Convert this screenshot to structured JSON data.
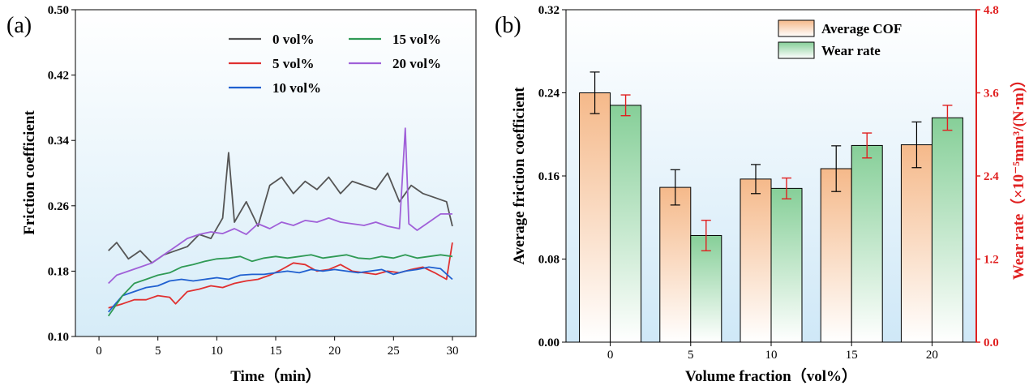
{
  "chart_data": [
    {
      "panel_label": "(a)",
      "type": "line",
      "title": "",
      "xlabel": "Time（min）",
      "ylabel": "Friction coefficient",
      "xlim": [
        -2,
        32
      ],
      "ylim": [
        0.1,
        0.5
      ],
      "xticks": [
        0,
        5,
        10,
        15,
        20,
        25,
        30
      ],
      "yticks": [
        0.1,
        0.18,
        0.26,
        0.34,
        0.42,
        0.5
      ],
      "yticklabels": [
        "0.10",
        "0.18",
        "0.26",
        "0.34",
        "0.42",
        "0.50"
      ],
      "legend_position": "top-right",
      "series": [
        {
          "name": "0 vol%",
          "color": "#555555",
          "x": [
            0.8,
            1.5,
            2.5,
            3.5,
            4.5,
            5.5,
            6.5,
            7.5,
            8.5,
            9.5,
            10.5,
            11,
            11.5,
            12.5,
            13.5,
            14.5,
            15.5,
            16.5,
            17.5,
            18.5,
            19.5,
            20.5,
            21.5,
            22.5,
            23.5,
            24.5,
            25.5,
            26.5,
            27.5,
            28.5,
            29.5,
            30
          ],
          "values": [
            0.205,
            0.215,
            0.195,
            0.205,
            0.19,
            0.2,
            0.205,
            0.21,
            0.225,
            0.22,
            0.245,
            0.325,
            0.24,
            0.265,
            0.235,
            0.285,
            0.295,
            0.275,
            0.29,
            0.28,
            0.295,
            0.275,
            0.29,
            0.285,
            0.28,
            0.3,
            0.265,
            0.285,
            0.275,
            0.27,
            0.265,
            0.235
          ]
        },
        {
          "name": "5 vol%",
          "color": "#e03030",
          "x": [
            0.8,
            2,
            3,
            4,
            5,
            6,
            6.5,
            7.5,
            8.5,
            9.5,
            10.5,
            11.5,
            12.5,
            13.5,
            14.5,
            15.5,
            16.5,
            17.5,
            18.5,
            19.5,
            20.5,
            21.5,
            22.5,
            23.5,
            24.5,
            25.5,
            26.5,
            27.5,
            28.5,
            29.5,
            30
          ],
          "values": [
            0.135,
            0.14,
            0.145,
            0.145,
            0.15,
            0.148,
            0.14,
            0.155,
            0.158,
            0.162,
            0.16,
            0.165,
            0.168,
            0.17,
            0.175,
            0.182,
            0.19,
            0.188,
            0.18,
            0.182,
            0.188,
            0.18,
            0.178,
            0.176,
            0.18,
            0.178,
            0.182,
            0.185,
            0.178,
            0.17,
            0.215
          ]
        },
        {
          "name": "10 vol%",
          "color": "#2060d0",
          "x": [
            0.8,
            2,
            3,
            4,
            5,
            6,
            7,
            8,
            9,
            10,
            11,
            12,
            13,
            14,
            15,
            16,
            17,
            18,
            19,
            20,
            21,
            22,
            23,
            24,
            25,
            26,
            27,
            28,
            29,
            30
          ],
          "values": [
            0.13,
            0.15,
            0.155,
            0.16,
            0.162,
            0.168,
            0.17,
            0.168,
            0.17,
            0.172,
            0.17,
            0.175,
            0.176,
            0.176,
            0.178,
            0.18,
            0.178,
            0.182,
            0.18,
            0.182,
            0.18,
            0.178,
            0.18,
            0.182,
            0.176,
            0.18,
            0.182,
            0.185,
            0.183,
            0.17
          ]
        },
        {
          "name": "15 vol%",
          "color": "#2f9a55",
          "x": [
            0.8,
            2,
            3,
            4,
            5,
            6,
            7,
            8,
            9,
            10,
            11,
            12,
            13,
            14,
            15,
            16,
            17,
            18,
            19,
            20,
            21,
            22,
            23,
            24,
            25,
            26,
            27,
            28,
            29,
            30
          ],
          "values": [
            0.125,
            0.15,
            0.165,
            0.17,
            0.175,
            0.178,
            0.185,
            0.188,
            0.192,
            0.195,
            0.196,
            0.198,
            0.192,
            0.196,
            0.198,
            0.196,
            0.198,
            0.2,
            0.196,
            0.198,
            0.2,
            0.196,
            0.195,
            0.198,
            0.196,
            0.2,
            0.196,
            0.198,
            0.2,
            0.198
          ]
        },
        {
          "name": "20 vol%",
          "color": "#a060d8",
          "x": [
            0.8,
            1.5,
            2.5,
            3.5,
            4.5,
            5.5,
            6.5,
            7.5,
            8.5,
            9.5,
            10.5,
            11.5,
            12.5,
            13.5,
            14.5,
            15.5,
            16.5,
            17.5,
            18.5,
            19.5,
            20.5,
            21.5,
            22.5,
            23.5,
            24.5,
            25.5,
            26,
            26.3,
            27,
            28,
            29,
            30
          ],
          "values": [
            0.165,
            0.175,
            0.18,
            0.185,
            0.19,
            0.2,
            0.21,
            0.22,
            0.225,
            0.228,
            0.226,
            0.232,
            0.225,
            0.238,
            0.232,
            0.24,
            0.236,
            0.242,
            0.24,
            0.245,
            0.24,
            0.238,
            0.236,
            0.24,
            0.235,
            0.232,
            0.355,
            0.238,
            0.23,
            0.24,
            0.25,
            0.25
          ]
        }
      ]
    },
    {
      "panel_label": "(b)",
      "type": "bar",
      "title": "",
      "xlabel": "Volume fraction（vol%）",
      "ylabel": "Average friction coefficient",
      "ylabel_right": "Wear rate（×10⁻⁵mm³/(N·m)）",
      "categories": [
        "0",
        "5",
        "10",
        "15",
        "20"
      ],
      "ylim": [
        0.0,
        0.32
      ],
      "yticks": [
        0.0,
        0.08,
        0.16,
        0.24,
        0.32
      ],
      "yticklabels": [
        "0.00",
        "0.08",
        "0.16",
        "0.24",
        "0.32"
      ],
      "ylim_right": [
        0.0,
        4.8
      ],
      "yticks_right": [
        0.0,
        1.2,
        2.4,
        3.6,
        4.8
      ],
      "yticklabels_right": [
        "0.0",
        "1.2",
        "2.4",
        "3.6",
        "4.8"
      ],
      "legend_position": "top-right",
      "series": [
        {
          "name": "Average COF",
          "axis": "left",
          "color": "#f5b98a",
          "values": [
            0.24,
            0.149,
            0.157,
            0.167,
            0.19
          ],
          "errors": [
            0.02,
            0.017,
            0.014,
            0.022,
            0.022
          ]
        },
        {
          "name": "Wear rate",
          "axis": "right",
          "color": "#86cf98",
          "values": [
            3.42,
            1.54,
            2.22,
            2.84,
            3.24
          ],
          "errors": [
            0.15,
            0.22,
            0.15,
            0.18,
            0.18
          ]
        }
      ]
    }
  ]
}
